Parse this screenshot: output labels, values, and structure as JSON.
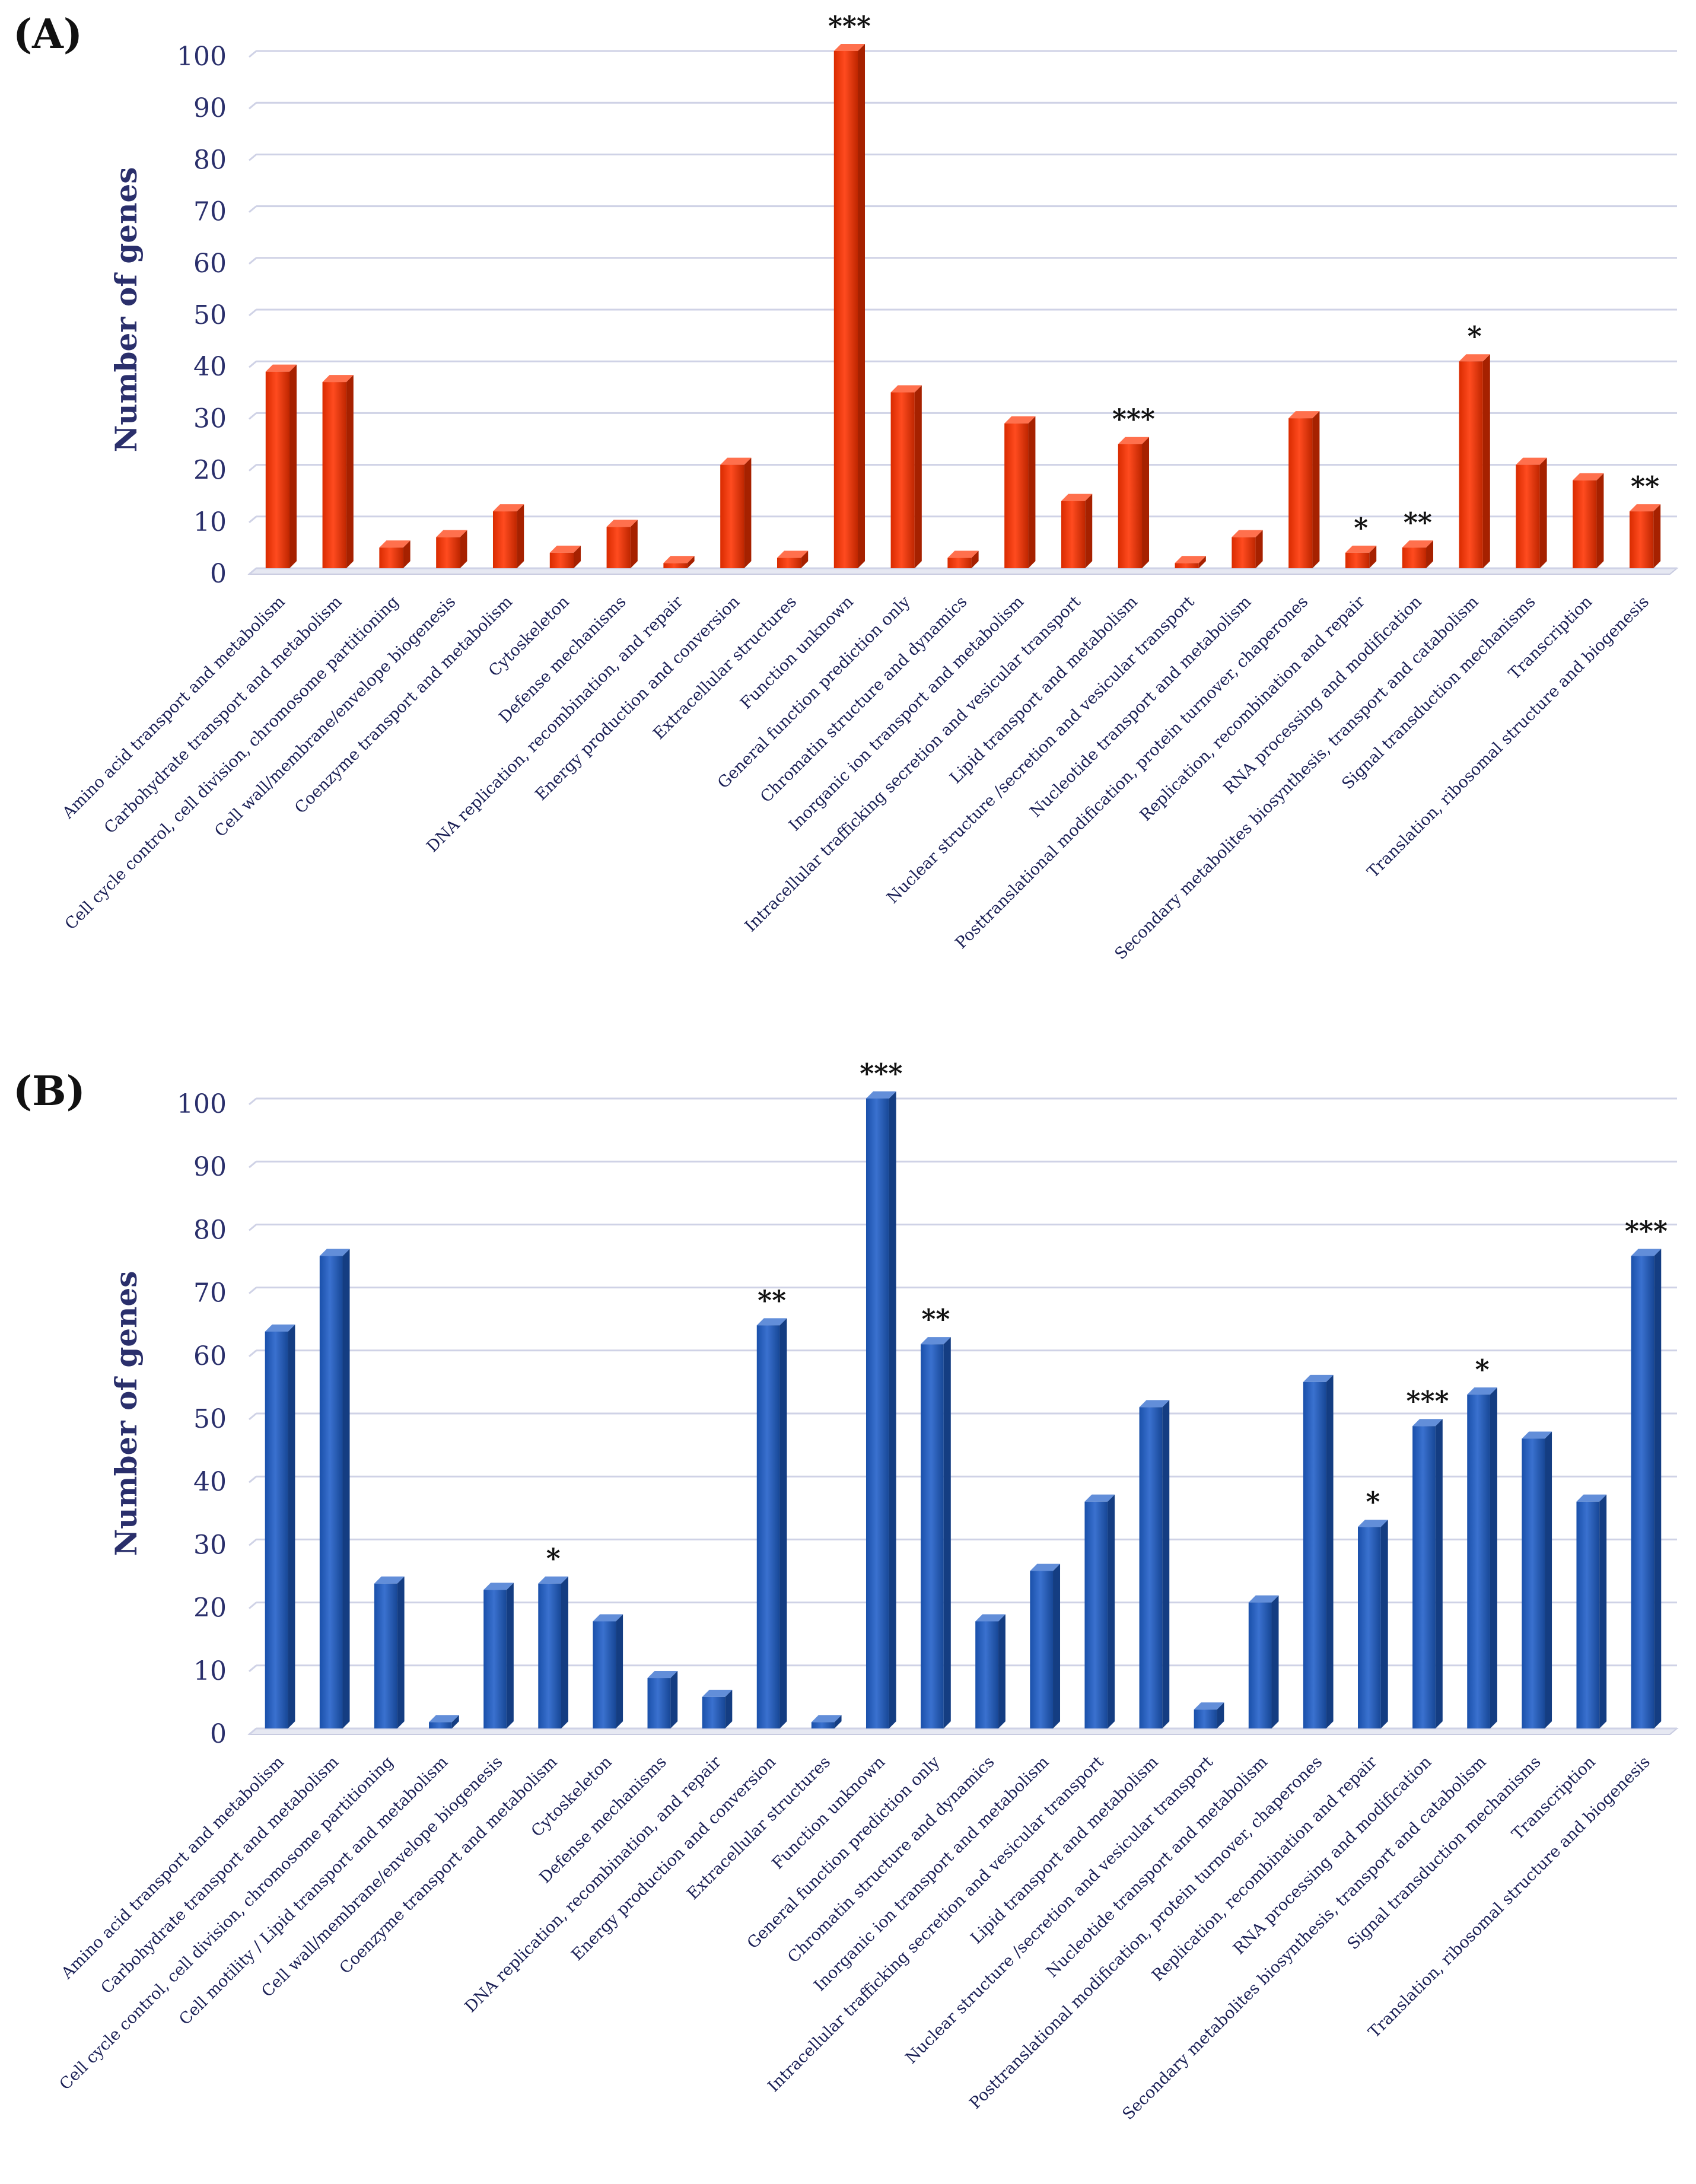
{
  "chart_data": [
    {
      "panel_label": "(A)",
      "type": "bar",
      "ylabel": "Number of genes",
      "ylim": [
        0,
        100
      ],
      "yticks": [
        0,
        10,
        20,
        30,
        40,
        50,
        60,
        70,
        80,
        90,
        100
      ],
      "grid": true,
      "color": "#ff3300",
      "categories": [
        "Amino acid transport and metabolism",
        "Carbohydrate transport and metabolism",
        "Cell cycle control, cell division, chromosome partitioning",
        "Cell wall/membrane/envelope biogenesis",
        "Coenzyme transport and metabolism",
        "Cytoskeleton",
        "Defense mechanisms",
        "DNA replication, recombination, and repair",
        "Energy production and conversion",
        "Extracellular structures",
        "Function unknown",
        "General function prediction only",
        "Chromatin structure and dynamics",
        "Inorganic ion transport and metabolism",
        "Intracellular trafficking secretion and vesicular transport",
        "Lipid transport and metabolism",
        "Nuclear structure /secretion and vesicular transport",
        "Nucleotide transport and metabolism",
        "Posttranslational modification, protein turnover, chaperones",
        "Replication, recombination and repair",
        "RNA processing and modification",
        "Secondary metabolites biosynthesis, transport and catabolism",
        "Signal transduction mechanisms",
        "Transcription",
        "Translation, ribosomal structure and biogenesis"
      ],
      "values": [
        38,
        36,
        4,
        6,
        11,
        3,
        8,
        1,
        20,
        2,
        100,
        34,
        2,
        28,
        13,
        24,
        1,
        6,
        29,
        3,
        4,
        40,
        20,
        17,
        11
      ],
      "significance": [
        "",
        "",
        "",
        "",
        "",
        "",
        "",
        "",
        "",
        "",
        "***",
        "",
        "",
        "",
        "",
        "***",
        "",
        "",
        "",
        "*",
        "**",
        "*",
        "",
        "",
        "**"
      ]
    },
    {
      "panel_label": "(B)",
      "type": "bar",
      "ylabel": "Number of genes",
      "ylim": [
        0,
        100
      ],
      "yticks": [
        0,
        10,
        20,
        30,
        40,
        50,
        60,
        70,
        80,
        90,
        100
      ],
      "grid": true,
      "color": "#1f5ec8",
      "categories": [
        "Amino acid transport and metabolism",
        "Carbohydrate transport and metabolism",
        "Cell cycle control, cell division, chromosome partitioning",
        "Cell motility / Lipid transport and metabolism",
        "Cell wall/membrane/envelope biogenesis",
        "Coenzyme transport and metabolism",
        "Cytoskeleton",
        "Defense mechanisms",
        "DNA replication, recombination, and repair",
        "Energy production and conversion",
        "Extracellular structures",
        "Function unknown",
        "General function prediction only",
        "Chromatin structure and dynamics",
        "Inorganic ion transport and metabolism",
        "Intracellular trafficking secretion and vesicular transport",
        "Lipid transport and metabolism",
        "Nuclear structure /secretion and vesicular transport",
        "Nucleotide transport and metabolism",
        "Posttranslational modification, protein turnover, chaperones",
        "Replication, recombination and repair",
        "RNA processing and modification",
        "Secondary metabolites biosynthesis, transport and catabolism",
        "Signal transduction mechanisms",
        "Transcription",
        "Translation, ribosomal structure and biogenesis"
      ],
      "values": [
        63,
        75,
        23,
        1,
        22,
        23,
        17,
        8,
        5,
        64,
        1,
        100,
        61,
        17,
        25,
        36,
        51,
        3,
        20,
        55,
        32,
        48,
        53,
        46,
        36,
        75
      ],
      "significance": [
        "",
        "",
        "",
        "",
        "",
        "*",
        "",
        "",
        "",
        "**",
        "",
        "***",
        "**",
        "",
        "",
        "",
        "",
        "",
        "",
        "",
        "*",
        "***",
        "*",
        "",
        "",
        "***"
      ]
    }
  ]
}
